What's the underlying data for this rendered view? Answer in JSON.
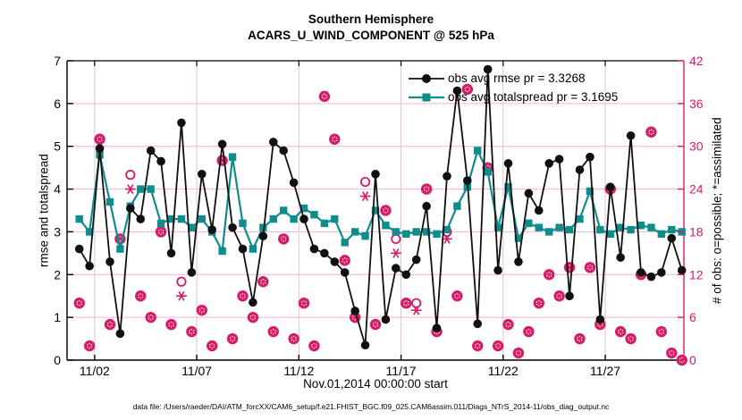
{
  "figure": {
    "title_line1": "Southern Hemisphere",
    "title_line2": "ACARS_U_WIND_COMPONENT @ 525 hPa",
    "xlabel": "Nov.01,2014 00:00:00 start",
    "ylabel_left": "rmse and totalspread",
    "ylabel_right": "# of obs: o=possible; *=assimilated",
    "caption": "data file: /Users/raeder/DAI/ATM_forcXX/CAM6_setup/f.e21.FHIST_BGC.f09_025.CAM6assim.011/Diags_NTrS_2014-11/obs_diag_output.nc"
  },
  "legend": {
    "rmse_label": "obs avg rmse pr = 3.3268",
    "spread_label": "obs avg totalspread pr = 3.1695"
  },
  "colors": {
    "rmse": "#111111",
    "spread": "#0f8d8d",
    "obs": "#d61c66",
    "axis": "#000000",
    "grid_h": "#f3b3cb",
    "grid_v": "#ddc6cc",
    "background": "#ffffff"
  },
  "chart_data": {
    "type": "line",
    "title": "Southern Hemisphere — ACARS_U_WIND_COMPONENT @ 525 hPa",
    "x_range": [
      -0.35,
      29.85
    ],
    "x_ticks": [
      {
        "day": 1,
        "label": "11/02"
      },
      {
        "day": 6,
        "label": "11/07"
      },
      {
        "day": 11,
        "label": "11/12"
      },
      {
        "day": 16,
        "label": "11/17"
      },
      {
        "day": 21,
        "label": "11/22"
      },
      {
        "day": 26,
        "label": "11/27"
      }
    ],
    "yleft": {
      "min": 0,
      "max": 7,
      "ticks": [
        0,
        1,
        2,
        3,
        4,
        5,
        6,
        7
      ],
      "label": "rmse and totalspread"
    },
    "yright": {
      "min": 0,
      "max": 42,
      "ticks": [
        0,
        6,
        12,
        18,
        24,
        30,
        36,
        42
      ],
      "label": "# of obs: o=possible; *=assimilated"
    },
    "grid": true,
    "legend_position": "top-right-inside",
    "x_days": [
      0.25,
      0.75,
      1.25,
      1.75,
      2.25,
      2.75,
      3.25,
      3.75,
      4.25,
      4.75,
      5.25,
      5.75,
      6.25,
      6.75,
      7.25,
      7.75,
      8.25,
      8.75,
      9.25,
      9.75,
      10.25,
      10.75,
      11.25,
      11.75,
      12.25,
      12.75,
      13.25,
      13.75,
      14.25,
      14.75,
      15.25,
      15.75,
      16.25,
      16.75,
      17.25,
      17.75,
      18.25,
      18.75,
      19.25,
      19.75,
      20.25,
      20.75,
      21.25,
      21.75,
      22.25,
      22.75,
      23.25,
      23.75,
      24.25,
      24.75,
      25.25,
      25.75,
      26.25,
      26.75,
      27.25,
      27.75,
      28.25,
      28.75,
      29.25,
      29.75
    ],
    "series": [
      {
        "name": "obs avg rmse pr = 3.3268",
        "axis": "left",
        "marker": "circle",
        "values": [
          2.6,
          2.2,
          4.95,
          2.3,
          0.62,
          3.55,
          3.3,
          4.9,
          4.65,
          2.5,
          5.55,
          2.05,
          4.35,
          3.05,
          5.05,
          3.1,
          2.6,
          1.35,
          2.9,
          5.1,
          4.9,
          4.15,
          3.3,
          2.6,
          2.5,
          2.3,
          2.05,
          1.15,
          0.35,
          4.35,
          0.95,
          2.15,
          2.0,
          2.35,
          3.6,
          0.75,
          4.3,
          6.3,
          4.2,
          0.85,
          6.8,
          2.1,
          4.6,
          2.3,
          3.9,
          3.5,
          4.6,
          4.7,
          1.5,
          4.45,
          4.75,
          0.95,
          4.05,
          2.4,
          5.25,
          2.05,
          1.95,
          2.05,
          2.85,
          2.1
        ]
      },
      {
        "name": "obs avg totalspread pr = 3.1695",
        "axis": "left",
        "marker": "square",
        "values": [
          3.3,
          3.0,
          4.8,
          3.7,
          2.6,
          3.6,
          4.0,
          4.0,
          3.2,
          3.3,
          3.3,
          3.1,
          3.3,
          3.0,
          2.55,
          4.75,
          3.2,
          2.6,
          3.1,
          3.3,
          3.5,
          3.3,
          3.55,
          3.4,
          3.2,
          3.3,
          2.75,
          3.0,
          2.9,
          3.5,
          3.15,
          3.0,
          2.95,
          3.0,
          3.0,
          2.95,
          3.05,
          3.6,
          4.05,
          4.9,
          4.4,
          3.1,
          4.05,
          2.85,
          3.2,
          3.1,
          3.0,
          3.1,
          3.05,
          3.3,
          3.95,
          3.05,
          2.95,
          3.1,
          3.05,
          3.15,
          3.1,
          2.95,
          3.05,
          3.0
        ]
      },
      {
        "name": "# of obs possible",
        "axis": "right",
        "marker": "o",
        "values": [
          8,
          2,
          31,
          5,
          17,
          26,
          9,
          6,
          18,
          5,
          11,
          4,
          7,
          2,
          28,
          3,
          9,
          6,
          11,
          4,
          17,
          3,
          8,
          2,
          37,
          31,
          14,
          6,
          25,
          5,
          21,
          17,
          8,
          8,
          24,
          4,
          18,
          9,
          38,
          2,
          27,
          2,
          5,
          1,
          4,
          8,
          12,
          9,
          13,
          3,
          13,
          5,
          24,
          4,
          3,
          12,
          32,
          4,
          1,
          0
        ]
      },
      {
        "name": "# of obs assimilated",
        "axis": "right",
        "marker": "asterisk",
        "values": [
          8,
          2,
          31,
          5,
          17,
          24,
          9,
          6,
          18,
          5,
          9,
          4,
          7,
          2,
          28,
          3,
          9,
          6,
          11,
          4,
          17,
          3,
          8,
          2,
          37,
          31,
          14,
          6,
          23,
          5,
          21,
          15,
          8,
          7,
          24,
          4,
          17,
          9,
          38,
          2,
          27,
          2,
          5,
          1,
          4,
          8,
          12,
          9,
          13,
          3,
          13,
          5,
          24,
          4,
          3,
          12,
          32,
          4,
          1,
          0
        ]
      }
    ]
  }
}
